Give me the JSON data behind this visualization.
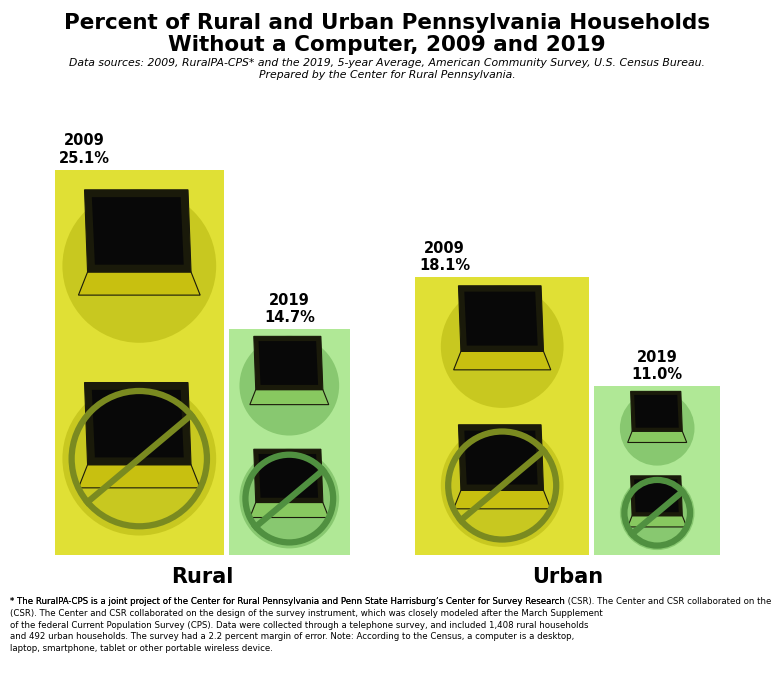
{
  "title_line1": "Percent of Rural and Urban Pennsylvania Households",
  "title_line2": "Without a Computer, 2009 and 2019",
  "subtitle": "Data sources: 2009, RuralPA-CPS* and the 2019, 5-year Average, American Community Survey, U.S. Census Bureau.\nPrepared by the Center for Rural Pennsylvania.",
  "footnote": "* The RuralPA-CPS is a joint project of the Center for Rural Pennsylvania and Penn State Harrisburg’s Center for Survey Research (CSR). The Center and CSR collaborated on the design of the survey instrument, which was closely modeled after the March Supplement of the federal Current Population Survey (CPS). Data were collected through a telephone survey, and included 1,408 rural households and 492 urban households. The survey had a 2.2 percent margin of error. Note: According to the Census, a computer is a desktop, laptop, smartphone, tablet or other portable wireless device.",
  "rural_2009_label": "2009\n25.1%",
  "rural_2019_label": "2019\n14.7%",
  "urban_2009_label": "2009\n18.1%",
  "urban_2019_label": "2019\n11.0%",
  "rural_label": "Rural",
  "urban_label": "Urban",
  "yellow_color": "#E0E035",
  "green_color": "#B0E896",
  "background_color": "#FFFFFF",
  "rural_2009_pct": 25.1,
  "rural_2019_pct": 14.7,
  "urban_2009_pct": 18.1,
  "urban_2019_pct": 11.0,
  "max_pct": 28.0
}
